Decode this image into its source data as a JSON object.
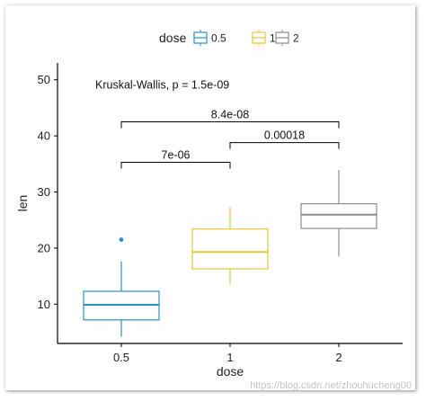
{
  "chart_data": {
    "type": "box",
    "categories": [
      "0.5",
      "1",
      "2"
    ],
    "xlabel": "dose",
    "ylabel": "len",
    "ylim": [
      3,
      53
    ],
    "yticks": [
      10,
      20,
      30,
      40,
      50
    ],
    "legend": {
      "title": "dose",
      "position": "top",
      "entries": [
        "0.5",
        "1",
        "2"
      ]
    },
    "colors": [
      "#2c8fc9",
      "#e7c63a",
      "#8c8c8c"
    ],
    "grid": false,
    "series": [
      {
        "name": "0.5",
        "min": 4.2,
        "q1": 7.2,
        "median": 9.9,
        "q3": 12.3,
        "max": 17.6,
        "outliers": [
          21.5
        ]
      },
      {
        "name": "1",
        "min": 13.6,
        "q1": 16.3,
        "median": 19.3,
        "q3": 23.4,
        "max": 27.3,
        "outliers": []
      },
      {
        "name": "2",
        "min": 18.5,
        "q1": 23.5,
        "median": 25.95,
        "q3": 27.9,
        "max": 33.9,
        "outliers": []
      }
    ],
    "global_test": "Kruskal-Wallis, p = 1.5e-09",
    "comparisons": [
      {
        "from": 0,
        "to": 1,
        "y": 35.3,
        "label": "7e-06"
      },
      {
        "from": 1,
        "to": 2,
        "y": 38.8,
        "label": "0.00018"
      },
      {
        "from": 0,
        "to": 2,
        "y": 42.5,
        "label": "8.4e-08"
      }
    ]
  },
  "watermark": "https://blog.csdn.net/zhouhucheng00"
}
